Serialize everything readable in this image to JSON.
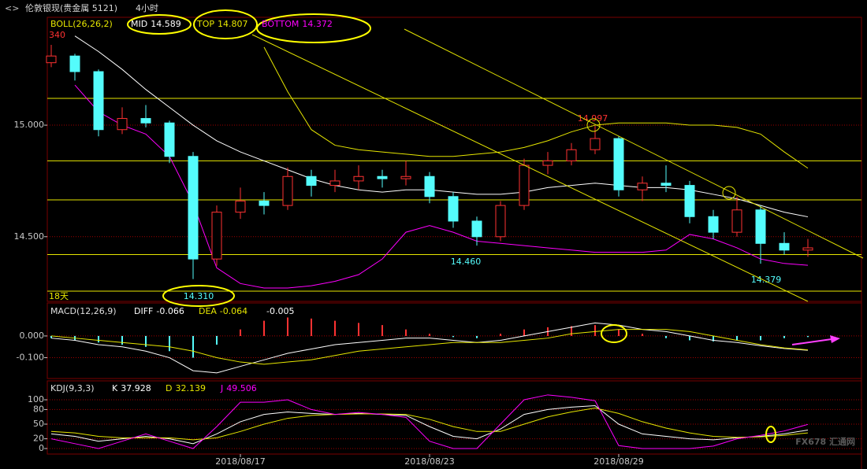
{
  "header": {
    "title": "伦敦银现(贵金属 5121)",
    "period": "4小时",
    "watermark": "FX678 汇通网"
  },
  "chart_data": [
    {
      "type": "candlestick",
      "title": "BOLL(26,26,2)",
      "categories": [
        null,
        null,
        null,
        null,
        null,
        null,
        null,
        null,
        "2018/08/17",
        null,
        null,
        null,
        null,
        null,
        null,
        null,
        "2018/08/23",
        null,
        null,
        null,
        null,
        null,
        null,
        null,
        "2018/08/29",
        null,
        null,
        null,
        null,
        null,
        null,
        null,
        null
      ],
      "open": [
        15.28,
        15.31,
        15.24,
        14.98,
        15.03,
        15.01,
        14.86,
        14.4,
        14.61,
        14.66,
        14.64,
        14.77,
        14.73,
        14.75,
        14.77,
        14.76,
        14.77,
        14.68,
        14.57,
        14.5,
        14.64,
        14.82,
        14.84,
        14.89,
        14.94,
        14.71,
        14.74,
        14.73,
        14.59,
        14.52,
        14.62,
        14.47,
        14.44
      ],
      "high": [
        15.36,
        15.32,
        15.25,
        15.08,
        15.09,
        15.02,
        14.88,
        14.64,
        14.72,
        14.7,
        14.81,
        14.8,
        14.8,
        14.82,
        14.8,
        14.84,
        14.79,
        14.7,
        14.59,
        14.66,
        14.85,
        14.88,
        14.92,
        14.997,
        14.95,
        14.77,
        14.82,
        14.75,
        14.62,
        14.68,
        14.64,
        14.52,
        14.49
      ],
      "low": [
        15.26,
        15.2,
        14.95,
        14.96,
        14.99,
        14.83,
        14.31,
        14.37,
        14.58,
        14.6,
        14.62,
        14.68,
        14.7,
        14.71,
        14.72,
        14.73,
        14.65,
        14.54,
        14.46,
        14.48,
        14.62,
        14.78,
        14.82,
        14.87,
        14.68,
        14.66,
        14.7,
        14.56,
        14.49,
        14.5,
        14.379,
        14.42,
        14.41
      ],
      "close": [
        15.31,
        15.24,
        14.98,
        15.03,
        15.01,
        14.86,
        14.4,
        14.61,
        14.66,
        14.64,
        14.77,
        14.73,
        14.75,
        14.77,
        14.76,
        14.77,
        14.68,
        14.57,
        14.5,
        14.64,
        14.82,
        14.84,
        14.89,
        14.94,
        14.71,
        14.74,
        14.73,
        14.59,
        14.52,
        14.62,
        14.47,
        14.44,
        14.45
      ],
      "up_color": "#ff3232",
      "down_color": "#54fcfc",
      "title_color": "#e6e600",
      "series": [
        {
          "name": "MID",
          "color": "#ffffff",
          "values": [
            null,
            15.4,
            15.33,
            15.25,
            15.16,
            15.08,
            15.0,
            14.93,
            14.88,
            14.84,
            14.8,
            14.76,
            14.73,
            14.71,
            14.7,
            14.71,
            14.71,
            14.7,
            14.69,
            14.69,
            14.7,
            14.72,
            14.73,
            14.74,
            14.73,
            14.72,
            14.72,
            14.71,
            14.69,
            14.67,
            14.64,
            14.61,
            14.589
          ]
        },
        {
          "name": "TOP",
          "color": "#e6e600",
          "values": [
            null,
            null,
            null,
            null,
            null,
            null,
            null,
            null,
            null,
            15.35,
            15.15,
            14.98,
            14.91,
            14.89,
            14.88,
            14.87,
            14.86,
            14.86,
            14.87,
            14.88,
            14.9,
            14.93,
            14.97,
            15.0,
            15.01,
            15.01,
            15.01,
            15.0,
            15.0,
            14.99,
            14.96,
            14.88,
            14.807
          ]
        },
        {
          "name": "BOTTOM",
          "color": "#ff00ff",
          "values": [
            null,
            15.18,
            15.06,
            15.0,
            14.96,
            14.86,
            14.65,
            14.36,
            14.29,
            14.27,
            14.27,
            14.28,
            14.3,
            14.33,
            14.4,
            14.52,
            14.55,
            14.52,
            14.48,
            14.47,
            14.46,
            14.45,
            14.44,
            14.43,
            14.43,
            14.43,
            14.44,
            14.51,
            14.49,
            14.45,
            14.4,
            14.38,
            14.372
          ]
        }
      ],
      "ylim": [
        14.21,
        15.42
      ],
      "yticks": [
        {
          "value": 14.5,
          "label": "14.500"
        },
        {
          "value": 15,
          "label": "15.000"
        }
      ],
      "grid": true,
      "levels": [
        15.12,
        14.84,
        14.665,
        14.42,
        14.256
      ],
      "level_color": "#e6e600",
      "annotations": [
        {
          "text": "14.997",
          "color": "#ff3232"
        },
        {
          "text": "14.460",
          "color": "#54fcfc"
        },
        {
          "text": "14.310",
          "color": "#54fcfc"
        },
        {
          "text": "14.379",
          "color": "#54fcfc"
        }
      ],
      "corner_label": "340",
      "range_label": "18天"
    },
    {
      "type": "macd",
      "title": "MACD(12,26,9)",
      "series": [
        {
          "name": "DIFF",
          "color": "#ffffff",
          "values": [
            -0.01,
            -0.02,
            -0.04,
            -0.05,
            -0.07,
            -0.1,
            -0.16,
            -0.17,
            -0.14,
            -0.11,
            -0.08,
            -0.06,
            -0.04,
            -0.03,
            -0.02,
            -0.01,
            -0.01,
            -0.02,
            -0.03,
            -0.02,
            0,
            0.02,
            0.04,
            0.06,
            0.05,
            0.03,
            0.02,
            0,
            -0.02,
            -0.03,
            -0.045,
            -0.058,
            -0.066
          ]
        },
        {
          "name": "DEA",
          "color": "#e6e600",
          "values": [
            0,
            -0.01,
            -0.02,
            -0.03,
            -0.04,
            -0.05,
            -0.07,
            -0.1,
            -0.12,
            -0.13,
            -0.12,
            -0.11,
            -0.09,
            -0.07,
            -0.06,
            -0.05,
            -0.04,
            -0.03,
            -0.03,
            -0.03,
            -0.02,
            -0.01,
            0.01,
            0.02,
            0.03,
            0.03,
            0.03,
            0.02,
            0,
            -0.02,
            -0.04,
            -0.055,
            -0.064
          ]
        }
      ],
      "histogram": {
        "up_color": "#ff3232",
        "down_color": "#54fcfc",
        "values": [
          -0.01,
          -0.02,
          -0.03,
          -0.04,
          -0.05,
          -0.07,
          -0.1,
          -0.04,
          0.03,
          0.07,
          0.085,
          0.08,
          0.07,
          0.06,
          0.05,
          0.03,
          0.01,
          -0.005,
          -0.01,
          0.01,
          0.03,
          0.04,
          0.045,
          0.05,
          0.03,
          0.01,
          -0.01,
          -0.02,
          -0.025,
          -0.02,
          -0.02,
          -0.01,
          -0.005
        ]
      },
      "ylim": [
        -0.185,
        0.141
      ],
      "yticks": [
        {
          "value": 0,
          "label": "0.000"
        },
        {
          "value": -0.1,
          "label": "-0.100"
        }
      ],
      "grid": true
    },
    {
      "type": "line",
      "title": "KDJ(9,3,3)",
      "series": [
        {
          "name": "K",
          "color": "#ffffff",
          "values": [
            30,
            25,
            15,
            20,
            25,
            20,
            10,
            30,
            55,
            70,
            75,
            72,
            70,
            72,
            70,
            68,
            45,
            25,
            20,
            40,
            70,
            80,
            85,
            88,
            50,
            30,
            25,
            20,
            18,
            22,
            25,
            30,
            37.928
          ]
        },
        {
          "name": "D",
          "color": "#e6e600",
          "values": [
            35,
            32,
            25,
            22,
            22,
            22,
            18,
            22,
            35,
            50,
            62,
            68,
            70,
            71,
            71,
            70,
            60,
            45,
            35,
            35,
            50,
            65,
            75,
            83,
            72,
            55,
            42,
            32,
            25,
            23,
            24,
            27,
            32.139
          ]
        },
        {
          "name": "J",
          "color": "#ff00ff",
          "values": [
            20,
            10,
            0,
            15,
            30,
            15,
            0,
            45,
            95,
            95,
            100,
            80,
            70,
            74,
            70,
            64,
            15,
            0,
            0,
            50,
            100,
            110,
            105,
            98,
            6,
            0,
            0,
            0,
            5,
            20,
            27,
            36,
            49.506
          ]
        }
      ],
      "ylim": [
        -12.9,
        132.3
      ],
      "yticks": [
        0,
        20,
        50,
        80,
        100
      ],
      "grid": true
    }
  ]
}
